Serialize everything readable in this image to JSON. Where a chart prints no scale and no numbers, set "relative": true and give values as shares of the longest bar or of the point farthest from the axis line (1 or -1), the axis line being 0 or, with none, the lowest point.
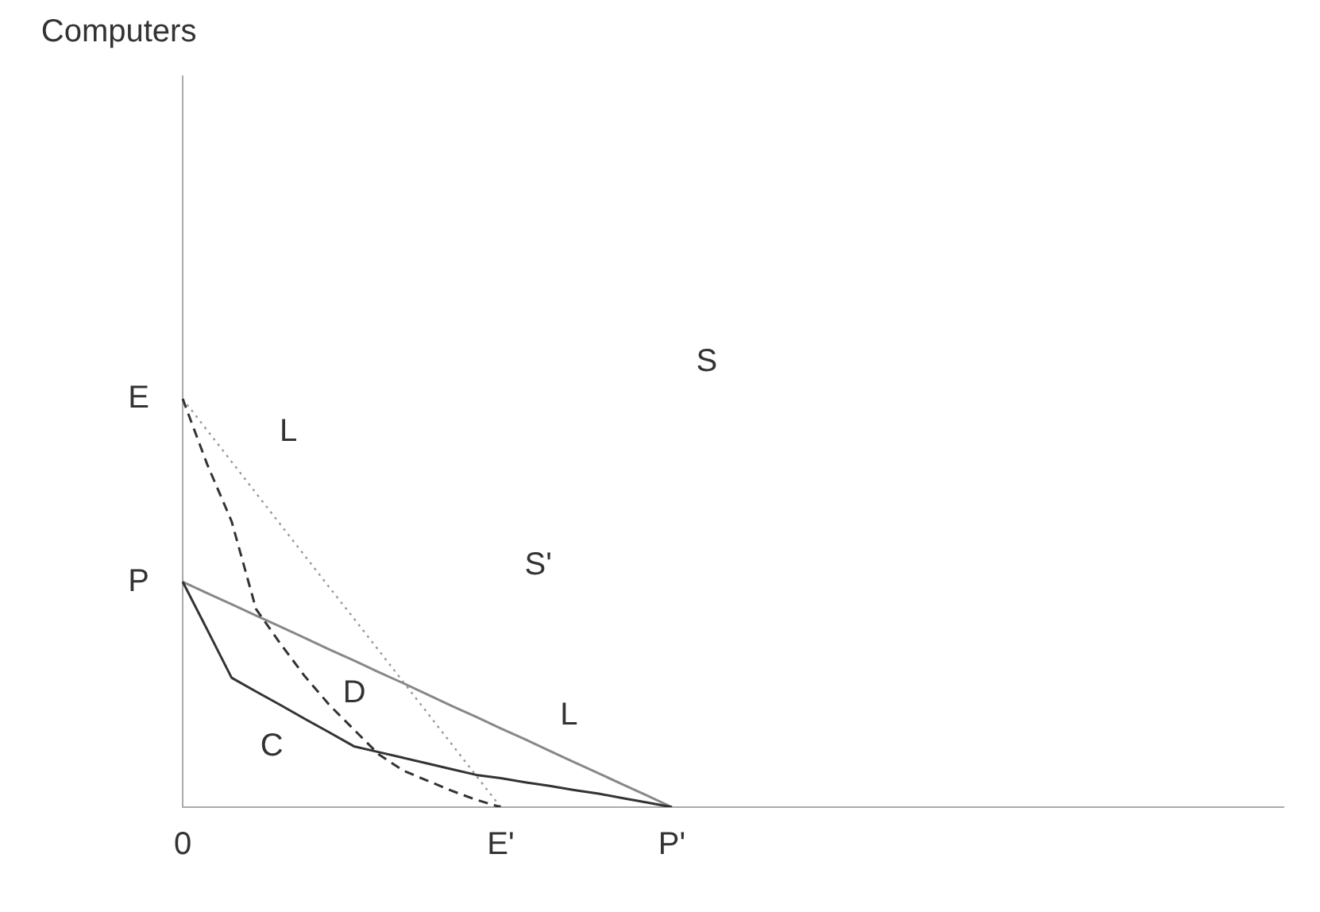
{
  "chart_data": {
    "type": "line",
    "relative": true,
    "grid": false,
    "categories": [
      "0",
      null,
      null,
      null,
      null,
      null,
      null,
      null,
      null,
      null,
      null,
      null,
      null,
      "E'",
      null,
      null,
      null,
      null,
      null,
      null,
      "P'",
      null,
      null,
      null,
      null,
      null,
      null,
      null,
      null,
      null,
      null,
      null,
      null,
      null,
      null,
      null,
      null,
      null,
      null,
      null,
      null,
      null,
      null,
      null,
      null,
      null
    ],
    "series": [
      {
        "color": "#333333",
        "line_style": "solid",
        "values": [
          0.552,
          0.435,
          0.317,
          0.283,
          0.25,
          0.216,
          0.183,
          0.149,
          0.135,
          0.121,
          0.107,
          0.093,
          0.079,
          0.071,
          0.061,
          0.052,
          0.042,
          0.033,
          0.022,
          0.011,
          0,
          null,
          null,
          null,
          null,
          null,
          null,
          null,
          null,
          null,
          null,
          null,
          null,
          null,
          null,
          null,
          null,
          null,
          null,
          null,
          null,
          null,
          null,
          null,
          null,
          null
        ]
      },
      {
        "color": "#333333",
        "line_style": "dashed",
        "values": [
          1,
          0.84,
          0.7,
          0.485,
          0.4,
          0.32,
          0.25,
          0.19,
          0.13,
          0.09,
          0.065,
          0.04,
          0.018,
          0,
          null,
          null,
          null,
          null,
          null,
          null,
          null,
          null,
          null,
          null,
          null,
          null,
          null,
          null,
          null,
          null,
          null,
          null,
          null,
          null,
          null,
          null,
          null,
          null,
          null,
          null,
          null,
          null,
          null,
          null,
          null,
          null
        ]
      },
      {
        "color": "#999999",
        "line_style": "dotted",
        "values": [
          1,
          0.923,
          0.846,
          0.769,
          0.692,
          0.615,
          0.538,
          0.462,
          0.385,
          0.308,
          0.231,
          0.154,
          0.077,
          0,
          null,
          null,
          null,
          null,
          null,
          null,
          null,
          null,
          null,
          null,
          null,
          null,
          null,
          null,
          null,
          null,
          null,
          null,
          null,
          null,
          null,
          null,
          null,
          null,
          null,
          null,
          null,
          null,
          null,
          null,
          null,
          null
        ]
      },
      {
        "color": "#888888",
        "line_style": "solid",
        "values": [
          0.552,
          0.524,
          0.497,
          0.469,
          0.442,
          0.414,
          0.386,
          0.359,
          0.331,
          0.304,
          0.276,
          0.248,
          0.221,
          0.193,
          0.166,
          0.138,
          0.11,
          0.083,
          0.055,
          0.028,
          0,
          null,
          null,
          null,
          null,
          null,
          null,
          null,
          null,
          null,
          null,
          null,
          null,
          null,
          null,
          null,
          null,
          null,
          null,
          null,
          null,
          null,
          null,
          null,
          null,
          null
        ]
      }
    ],
    "annotations": [
      "Computers",
      "E",
      "P",
      "S",
      "S'",
      "L",
      "L",
      "D",
      "C"
    ]
  }
}
